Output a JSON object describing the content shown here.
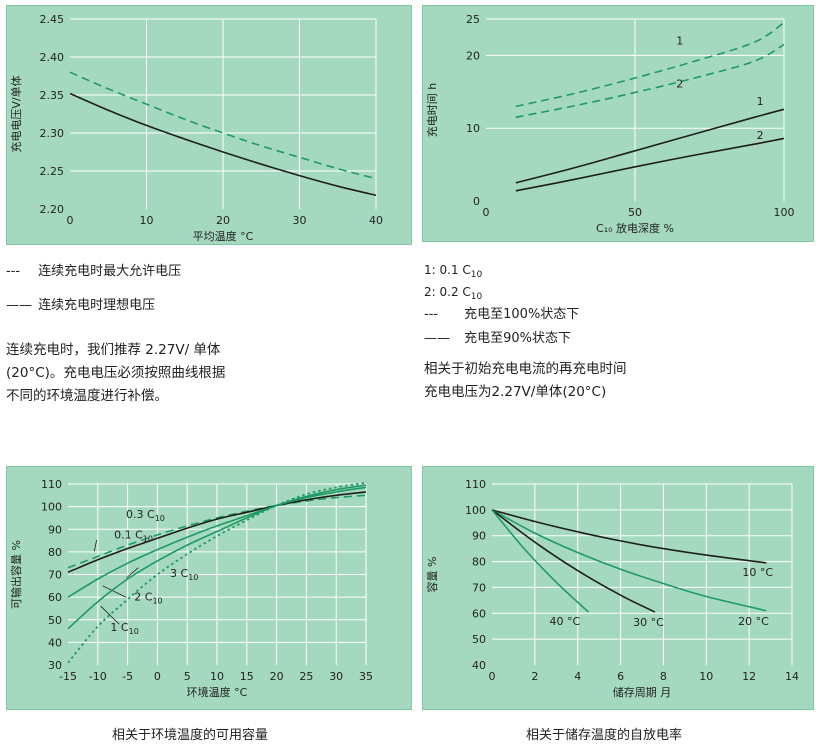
{
  "colors": {
    "plot_bg": "#a4d9bf",
    "frame": "#7fc9a2",
    "green_line": "#1f9a62",
    "dark_line": "#1e1e1e",
    "grid": "#ffffff"
  },
  "chart_data": [
    {
      "id": "charge-voltage",
      "type": "line",
      "xlabel": "平均温度 °C",
      "ylabel": "充电电压V/单体",
      "xlim": [
        0,
        40
      ],
      "ylim": [
        2.2,
        2.45
      ],
      "xticks": [
        "0",
        "10",
        "20",
        "30",
        "40"
      ],
      "yticks": [
        "2.20",
        "2.25",
        "2.30",
        "2.35",
        "2.40",
        "2.45"
      ],
      "grid": true,
      "series": [
        {
          "key": "max",
          "style": "dashed-green",
          "x": [
            0,
            5,
            10,
            15,
            20,
            25,
            30,
            35,
            40
          ],
          "y": [
            2.38,
            2.358,
            2.338,
            2.318,
            2.3,
            2.283,
            2.268,
            2.253,
            2.24
          ]
        },
        {
          "key": "ideal",
          "style": "solid-dark",
          "x": [
            0,
            5,
            10,
            15,
            20,
            25,
            30,
            35,
            40
          ],
          "y": [
            2.352,
            2.33,
            2.31,
            2.292,
            2.275,
            2.259,
            2.244,
            2.23,
            2.218
          ]
        }
      ]
    },
    {
      "id": "recharge-time",
      "type": "line",
      "xlabel": "C₁₀ 放电深度 %",
      "ylabel": "充电时间 h",
      "xlim": [
        0,
        100
      ],
      "ylim": [
        0,
        25
      ],
      "xticks": [
        "0",
        "50",
        "100"
      ],
      "yticks": [
        "0",
        "10",
        "20",
        "25"
      ],
      "ytick_values": [
        0,
        10,
        20,
        25
      ],
      "grid": true,
      "series": [
        {
          "name": "1",
          "style": "dashed-green",
          "x": [
            10,
            30,
            50,
            70,
            90,
            100
          ],
          "y": [
            13,
            14.8,
            16.9,
            19.2,
            21.8,
            24.5
          ]
        },
        {
          "name": "2",
          "style": "dashed-green",
          "x": [
            10,
            30,
            50,
            70,
            90,
            100
          ],
          "y": [
            11.5,
            13.1,
            14.9,
            16.9,
            19.2,
            21.5
          ]
        },
        {
          "name": "1",
          "style": "solid-dark",
          "x": [
            10,
            30,
            50,
            70,
            90,
            100
          ],
          "y": [
            2.5,
            4.6,
            6.9,
            9.2,
            11.5,
            12.6
          ]
        },
        {
          "name": "2",
          "style": "solid-dark",
          "x": [
            10,
            30,
            50,
            70,
            90,
            100
          ],
          "y": [
            1.4,
            3,
            4.7,
            6.3,
            7.8,
            8.6
          ]
        }
      ],
      "series_label_pos": [
        [
          65,
          21.5
        ],
        [
          65,
          15.6
        ],
        [
          92,
          13.2
        ],
        [
          92,
          8.5
        ]
      ]
    },
    {
      "id": "capacity-temperature",
      "type": "line",
      "xlabel": "环境温度 °C",
      "ylabel": "可输出容量 %",
      "xlim": [
        -15,
        35
      ],
      "ylim": [
        30,
        110
      ],
      "xticks": [
        "-15",
        "-10",
        "-5",
        "0",
        "5",
        "10",
        "15",
        "20",
        "25",
        "30",
        "35"
      ],
      "yticks": [
        "30",
        "40",
        "50",
        "60",
        "70",
        "80",
        "90",
        "100",
        "110"
      ],
      "grid": true,
      "series": [
        {
          "name": "0.3 C10",
          "style": "dashed-green",
          "x": [
            -15,
            -10,
            -5,
            0,
            5,
            10,
            15,
            20,
            25,
            30,
            35
          ],
          "y": [
            73,
            78,
            83,
            87.5,
            91.5,
            95,
            98,
            100.5,
            102.5,
            104,
            105
          ]
        },
        {
          "name": "0.1 C10",
          "style": "solid-dark",
          "x": [
            -15,
            -10,
            -5,
            0,
            5,
            10,
            15,
            20,
            25,
            30,
            35
          ],
          "y": [
            71,
            76.5,
            81.5,
            86,
            90.5,
            94.5,
            97.5,
            100.5,
            103,
            105,
            106.5
          ]
        },
        {
          "name": "1 C10",
          "style": "solid-green",
          "x": [
            -15,
            -10,
            -5,
            0,
            5,
            10,
            15,
            20,
            25,
            30,
            35
          ],
          "y": [
            46,
            58,
            68,
            76,
            83,
            89,
            95,
            100.5,
            104.5,
            107.5,
            109.5
          ]
        },
        {
          "name": "2 C10",
          "style": "solid-green",
          "x": [
            -15,
            -10,
            -5,
            0,
            5,
            10,
            15,
            20,
            25,
            30,
            35
          ],
          "y": [
            60,
            68,
            75,
            81,
            86.5,
            91.5,
            96,
            100.5,
            104,
            106.5,
            108.5
          ]
        },
        {
          "name": "3 C10",
          "style": "dotted-green",
          "x": [
            -15,
            -10,
            -5,
            0,
            5,
            10,
            15,
            20,
            25,
            30,
            35
          ],
          "y": [
            31,
            47,
            59,
            70,
            79,
            87,
            94,
            100.5,
            105.5,
            108.5,
            110.5
          ]
        }
      ],
      "series_label_pos": [
        [
          -2,
          95
        ],
        [
          -4,
          86
        ],
        [
          -5.5,
          45
        ],
        [
          -1.5,
          58.5
        ],
        [
          4.5,
          69
        ]
      ],
      "label_lines": [
        [
          [
            -10.2,
            85.2
          ],
          [
            -10.6,
            80.2
          ]
        ],
        [
          [
            -5.3,
            60
          ],
          [
            -9.2,
            65
          ]
        ],
        [
          [
            -6.4,
            48
          ],
          [
            -9.5,
            56
          ]
        ],
        [
          [
            -3.2,
            73
          ],
          [
            -5.2,
            68.5
          ]
        ]
      ]
    },
    {
      "id": "self-discharge",
      "type": "line",
      "xlabel": "储存周期  月",
      "ylabel": "容量 %",
      "xlim": [
        0,
        14
      ],
      "ylim": [
        40,
        110
      ],
      "xticks": [
        "0",
        "2",
        "4",
        "6",
        "8",
        "10",
        "12",
        "14"
      ],
      "yticks": [
        "40",
        "50",
        "60",
        "70",
        "80",
        "90",
        "100",
        "110"
      ],
      "grid": true,
      "series": [
        {
          "name": "10 °C",
          "style": "solid-dark",
          "x": [
            0,
            2,
            4,
            6,
            8,
            10,
            12.8
          ],
          "y": [
            100,
            95.5,
            91.5,
            88,
            85,
            82.5,
            79.5
          ]
        },
        {
          "name": "20 °C",
          "style": "solid-green",
          "x": [
            0,
            2,
            4,
            6,
            8,
            10,
            12.8
          ],
          "y": [
            100,
            91,
            83.5,
            77,
            71.5,
            66.5,
            61
          ]
        },
        {
          "name": "30 °C",
          "style": "solid-dark",
          "x": [
            0,
            2,
            4,
            6,
            7.6
          ],
          "y": [
            100,
            87.5,
            76.5,
            67,
            60.5
          ]
        },
        {
          "name": "40 °C",
          "style": "solid-green",
          "x": [
            0,
            1.5,
            3,
            4.5
          ],
          "y": [
            100,
            85,
            72,
            60.5
          ]
        }
      ],
      "series_label_pos": [
        [
          12.4,
          74.5
        ],
        [
          12.2,
          55.5
        ],
        [
          7.3,
          55
        ],
        [
          3.4,
          55.5
        ]
      ]
    }
  ],
  "legend_tl": {
    "dashed_marker": "---",
    "dashed_label": "连续充电时最大允许电压",
    "solid_marker": "——",
    "solid_label": "连续充电时理想电压"
  },
  "para_tl": {
    "line1": "连续充电时，我们推荐 2.27V/ 单体",
    "line2": "(20°C)。充电电压必须按照曲线根据",
    "line3": "不同的环境温度进行补偿。"
  },
  "legend_tr": {
    "item1_text": "1: 0.1 C",
    "item1_sub": "10",
    "item2_text": "2: 0.2 C",
    "item2_sub": "10",
    "dashed_marker": "---",
    "dashed_label": "充电至100%状态下",
    "solid_marker": "——",
    "solid_label": "充电至90%状态下"
  },
  "para_tr": {
    "line1": "相关于初始充电电流的再充电时间",
    "line2": "充电电压为2.27V/单体(20°C)"
  },
  "caption_bl": "相关于环境温度的可用容量",
  "caption_br": "相关于储存温度的自放电率"
}
